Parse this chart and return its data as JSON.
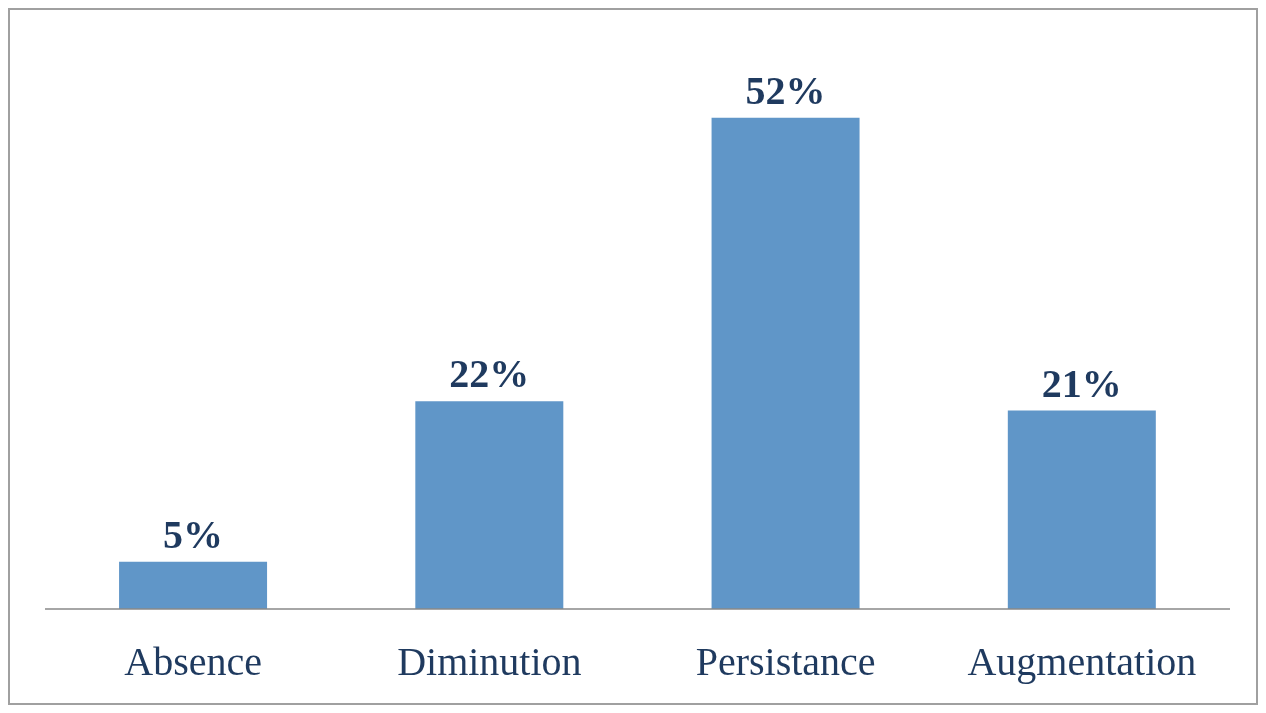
{
  "chart_data": {
    "type": "bar",
    "categories": [
      "Absence",
      "Diminution",
      "Persistance",
      "Augmentation"
    ],
    "values": [
      5,
      22,
      52,
      21
    ],
    "value_labels": [
      "5%",
      "22%",
      "52%",
      "21%"
    ],
    "color": "#6096c8"
  }
}
